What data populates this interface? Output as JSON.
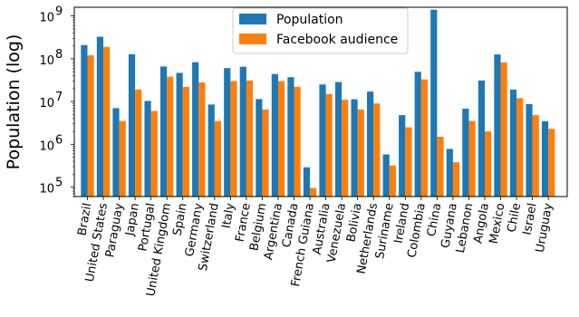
{
  "chart_data": {
    "type": "bar",
    "title": "",
    "xlabel": "",
    "ylabel": "Population (log)",
    "yscale": "log",
    "ylim": [
      60000,
      1600000000
    ],
    "yticks": [
      {
        "value": 100000,
        "base": "10",
        "exp": "5"
      },
      {
        "value": 1000000,
        "base": "10",
        "exp": "6"
      },
      {
        "value": 10000000,
        "base": "10",
        "exp": "7"
      },
      {
        "value": 100000000,
        "base": "10",
        "exp": "8"
      },
      {
        "value": 1000000000,
        "base": "10",
        "exp": "9"
      }
    ],
    "grid": false,
    "legend": "top-center",
    "categories": [
      "Brazil",
      "United States",
      "Paraguay",
      "Japan",
      "Portugal",
      "United Kingdom",
      "Spain",
      "Germany",
      "Switzerland",
      "Italy",
      "France",
      "Belgium",
      "Argentina",
      "Canada",
      "French Guiana",
      "Australia",
      "Venezuela",
      "Bolivia",
      "Netherlands",
      "Suriname",
      "Ireland",
      "Colombia",
      "China",
      "Guyana",
      "Lebanon",
      "Angola",
      "Mexico",
      "Chile",
      "Israel",
      "Uruguay"
    ],
    "series": [
      {
        "name": "Population",
        "color": "#1f77b4",
        "values": [
          209000000,
          327000000,
          7000000,
          127000000,
          10300000,
          66000000,
          46700000,
          83000000,
          8500000,
          60500000,
          65000000,
          11400000,
          44000000,
          37000000,
          290000,
          25000000,
          28500000,
          11300000,
          17100000,
          580000,
          4800000,
          49500000,
          1400000000,
          780000,
          6800000,
          31000000,
          126000000,
          19000000,
          8700000,
          3450000
        ]
      },
      {
        "name": "Facebook audience",
        "color": "#ff7f0e",
        "values": [
          120000000,
          190000000,
          3500000,
          19000000,
          6000000,
          38000000,
          22000000,
          28000000,
          3500000,
          30000000,
          31000000,
          6500000,
          30000000,
          22000000,
          95000,
          15000000,
          11000000,
          6500000,
          9000000,
          320000,
          2500000,
          33000000,
          1500000,
          380000,
          3500000,
          2000000,
          82000000,
          12000000,
          4800000,
          2300000
        ]
      }
    ]
  }
}
